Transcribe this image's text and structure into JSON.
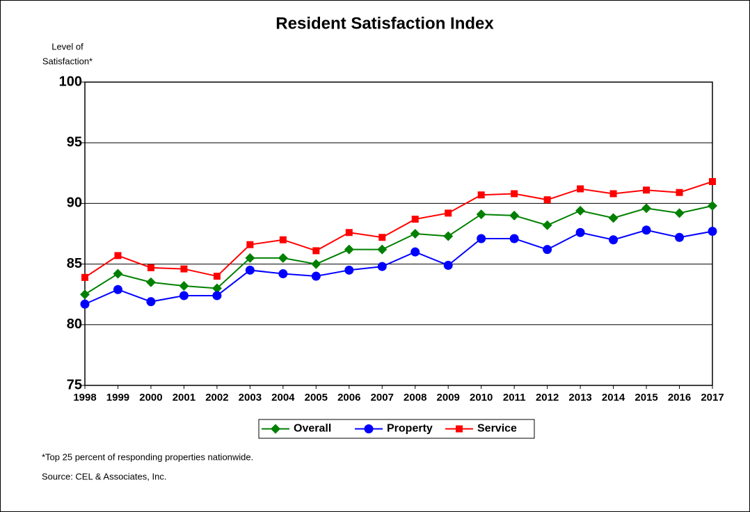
{
  "chart_data": {
    "type": "line",
    "title": "Resident Satisfaction Index",
    "y_label": [
      "Level of",
      "Satisfaction*"
    ],
    "categories": [
      "1998",
      "1999",
      "2000",
      "2001",
      "2002",
      "2003",
      "2004",
      "2005",
      "2006",
      "2007",
      "2008",
      "2009",
      "2010",
      "2011",
      "2012",
      "2013",
      "2014",
      "2015",
      "2016",
      "2017"
    ],
    "series": [
      {
        "name": "Overall",
        "color": "#008000",
        "marker": "diamond",
        "values": [
          82.5,
          84.2,
          83.5,
          83.2,
          83.0,
          85.5,
          85.5,
          85.0,
          86.2,
          86.2,
          87.5,
          87.3,
          89.1,
          89.0,
          88.2,
          89.4,
          88.8,
          89.6,
          89.2,
          89.8
        ]
      },
      {
        "name": "Property",
        "color": "#0000ff",
        "marker": "circle",
        "values": [
          81.7,
          82.9,
          81.9,
          82.4,
          82.4,
          84.5,
          84.2,
          84.0,
          84.5,
          84.8,
          86.0,
          84.9,
          87.1,
          87.1,
          86.2,
          87.6,
          87.0,
          87.8,
          87.2,
          87.7
        ]
      },
      {
        "name": "Service",
        "color": "#ff0000",
        "marker": "square",
        "values": [
          83.9,
          85.7,
          84.7,
          84.6,
          84.0,
          86.6,
          87.0,
          86.1,
          87.6,
          87.2,
          88.7,
          89.2,
          90.7,
          90.8,
          90.3,
          91.2,
          90.8,
          91.1,
          90.9,
          91.8
        ]
      }
    ],
    "ylim": [
      75,
      100
    ],
    "yticks": [
      75,
      80,
      85,
      90,
      95,
      100
    ],
    "grid": true,
    "legend": "bottom",
    "notes": [
      "*Top 25 percent of responding properties nationwide.",
      "Source: CEL & Associates, Inc."
    ]
  }
}
